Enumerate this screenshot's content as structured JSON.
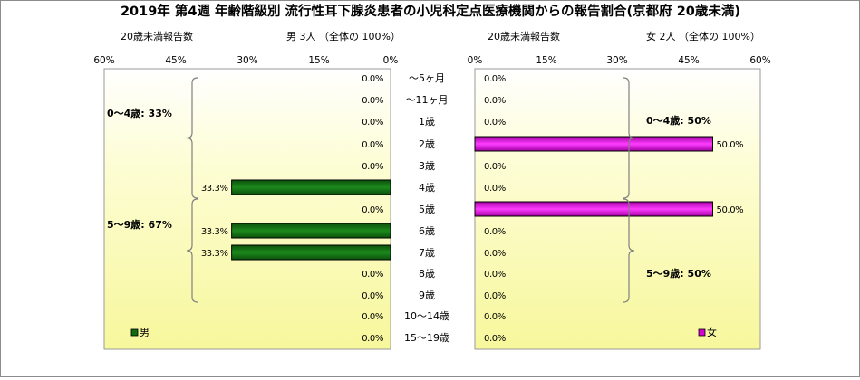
{
  "chart_data": {
    "type": "bar",
    "title": "2019年 第4週 年齢階級別 流行性耳下腺炎患者の小児科定点医療機関からの報告割合(京都府 20歳未満)",
    "categories": [
      "～5ヶ月",
      "～11ヶ月",
      "1歳",
      "2歳",
      "3歳",
      "4歳",
      "5歳",
      "6歳",
      "7歳",
      "8歳",
      "9歳",
      "10～14歳",
      "15～19歳"
    ],
    "xlim": [
      0,
      60
    ],
    "xticks": [
      "60%",
      "45%",
      "30%",
      "15%",
      "0%"
    ],
    "xticks_right": [
      "0%",
      "15%",
      "30%",
      "45%",
      "60%"
    ],
    "series": [
      {
        "name": "男",
        "panel_label": "20歳未満報告数",
        "header": "男  3人  （全体の  100%）",
        "values": [
          0,
          0,
          0,
          0,
          0,
          33.3,
          0,
          33.3,
          33.3,
          0,
          0,
          0,
          0
        ],
        "labels": [
          "0.0%",
          "0.0%",
          "0.0%",
          "0.0%",
          "0.0%",
          "33.3%",
          "0.0%",
          "33.3%",
          "33.3%",
          "0.0%",
          "0.0%",
          "0.0%",
          "0.0%"
        ],
        "groups": [
          "0～4歳: 33%",
          "5～9歳: 67%"
        ],
        "color": "#116b11"
      },
      {
        "name": "女",
        "panel_label": "20歳未満報告数",
        "header": "女  2人  （全体の  100%）",
        "values": [
          0,
          0,
          0,
          50,
          0,
          0,
          50,
          0,
          0,
          0,
          0,
          0,
          0
        ],
        "labels": [
          "0.0%",
          "0.0%",
          "0.0%",
          "50.0%",
          "0.0%",
          "0.0%",
          "50.0%",
          "0.0%",
          "0.0%",
          "0.0%",
          "0.0%",
          "0.0%",
          "0.0%"
        ],
        "groups": [
          "0～4歳: 50%",
          "5～9歳: 50%"
        ],
        "color": "#d400d4"
      }
    ]
  }
}
